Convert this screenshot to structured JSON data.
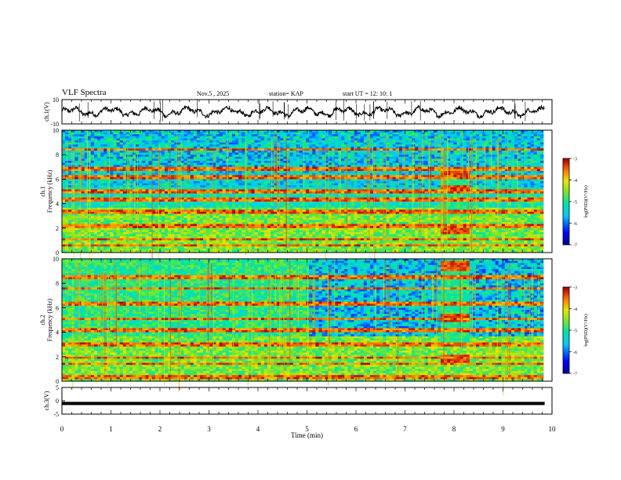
{
  "header": {
    "title": "VLF Spectra",
    "date": "Nov.5  , 2025",
    "station": "station= KAP",
    "start": "start  UT  =   12: 10: 1"
  },
  "chart_data": [
    {
      "type": "line",
      "name": "ch1-waveform",
      "ylabel": "ch.1(V)",
      "ylim": [
        -10,
        10
      ],
      "yticks": [
        "10",
        "-10"
      ],
      "x_range_min": [
        0,
        9.85
      ],
      "description_series": "waveform oscillating roughly between -5 and 5 V"
    },
    {
      "type": "heatmap",
      "name": "ch1-spectrogram",
      "ylabel_top": "ch.1",
      "ylabel": "Frequency  (kHz)",
      "ylim": [
        0,
        10
      ],
      "yticks": [
        "0",
        "2",
        "4",
        "6",
        "8",
        "10"
      ],
      "colorbar": {
        "label": "log(PSD)(V²/Hz)",
        "ticks": [
          "-3",
          "-4",
          "-5",
          "-6",
          "-7"
        ],
        "range": [
          -7,
          -3
        ]
      }
    },
    {
      "type": "heatmap",
      "name": "ch2-spectrogram",
      "ylabel_top": "ch.2",
      "ylabel": "Frequency  (kHz)",
      "ylim": [
        0,
        10
      ],
      "yticks": [
        "0",
        "2",
        "4",
        "6",
        "8",
        "10"
      ],
      "colorbar": {
        "label": "log(PSD)(V²/Hz)",
        "ticks": [
          "-3",
          "-4",
          "-5",
          "-6",
          "-7"
        ],
        "range": [
          -7,
          -3
        ]
      }
    },
    {
      "type": "line",
      "name": "ch3-waveform",
      "ylabel": "ch.3(V)",
      "ylim": [
        -5,
        5
      ],
      "yticks": [
        "5",
        "0",
        "-5"
      ],
      "x_range_min": [
        0,
        9.85
      ],
      "description_series": "flat thick band near -1 V"
    }
  ],
  "xaxis": {
    "label": "Time  (min)",
    "range": [
      0,
      10
    ],
    "ticks": [
      "0",
      "1",
      "2",
      "3",
      "4",
      "5",
      "6",
      "7",
      "8",
      "9",
      "10"
    ]
  },
  "colors": {
    "axis": "#000000"
  }
}
